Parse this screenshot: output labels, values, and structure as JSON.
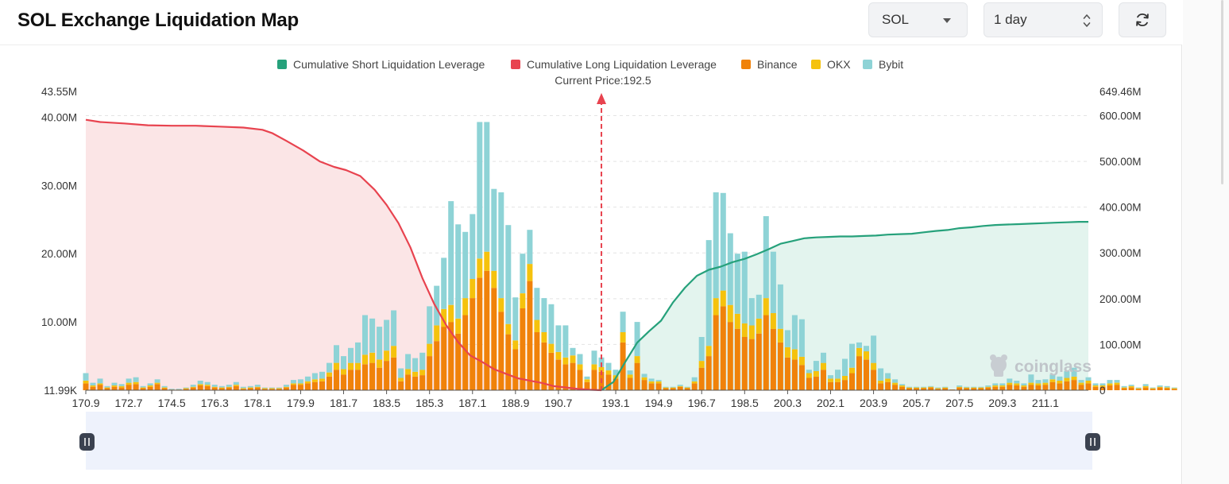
{
  "page": {
    "title": "SOL Exchange Liquidation Map"
  },
  "controls": {
    "coin": "SOL",
    "range": "1 day"
  },
  "watermark": "coinglass",
  "chart_data": {
    "type": "bar",
    "legend": [
      {
        "name": "Cumulative Short Liquidation Leverage",
        "color": "#26a17b"
      },
      {
        "name": "Cumulative Long Liquidation Leverage",
        "color": "#e8434f"
      },
      {
        "name": "Binance",
        "color": "#f0820a"
      },
      {
        "name": "OKX",
        "color": "#f5c20d"
      },
      {
        "name": "Bybit",
        "color": "#8ed3d6"
      }
    ],
    "current_price_label": "Current Price:192.5",
    "current_price": 192.5,
    "x_range": [
      170.9,
      212.9
    ],
    "x_ticks": [
      170.9,
      172.7,
      174.5,
      176.3,
      178.1,
      179.9,
      181.7,
      183.5,
      185.3,
      187.1,
      188.9,
      190.7,
      193.1,
      194.9,
      196.7,
      198.5,
      200.3,
      202.1,
      203.9,
      205.7,
      207.5,
      209.3,
      211.1
    ],
    "x_tick_labels": [
      "170.9",
      "172.7",
      "174.5",
      "176.3",
      "178.1",
      "179.9",
      "181.7",
      "183.5",
      "185.3",
      "187.1",
      "188.9",
      "190.7",
      "193.1",
      "194.9",
      "196.7",
      "198.5",
      "200.3",
      "202.1",
      "203.9",
      "205.7",
      "207.5",
      "209.3",
      "211.1"
    ],
    "y_left": {
      "min": 0,
      "max": 43.55,
      "unit": "M",
      "ticks": [
        0,
        10,
        20,
        30,
        40
      ],
      "tick_labels": [
        "11.99K",
        "10.00M",
        "20.00M",
        "30.00M",
        "40.00M"
      ],
      "top_label": "43.55M"
    },
    "y_right": {
      "min": 0,
      "max": 649.46,
      "unit": "M",
      "ticks": [
        0,
        100,
        200,
        300,
        400,
        500,
        600
      ],
      "tick_labels": [
        "0",
        "100.00M",
        "200.00M",
        "300.00M",
        "400.00M",
        "500.00M",
        "600.00M"
      ],
      "top_label": "649.46M"
    },
    "bars_start": 170.9,
    "bars_step": 0.3,
    "series": [
      {
        "name": "Binance",
        "color": "#f0820a",
        "values": [
          1.0,
          0.5,
          0.8,
          0.3,
          0.5,
          0.4,
          0.8,
          0.9,
          0.3,
          0.5,
          0.9,
          0.3,
          0.1,
          0.1,
          0.2,
          0.4,
          0.7,
          0.6,
          0.4,
          0.3,
          0.4,
          0.6,
          0.2,
          0.3,
          0.4,
          0.2,
          0.2,
          0.2,
          0.4,
          0.8,
          0.8,
          1.0,
          1.2,
          1.3,
          2.0,
          3.0,
          2.3,
          3.0,
          3.0,
          3.8,
          4.0,
          3.3,
          4.3,
          4.8,
          1.3,
          2.3,
          2.0,
          2.2,
          5.0,
          7.2,
          9.3,
          10.0,
          8.3,
          11.0,
          13.5,
          16.5,
          17.5,
          15.0,
          11.5,
          8.2,
          6.0,
          12.0,
          16.0,
          8.5,
          7.0,
          5.5,
          4.5,
          3.8,
          4.0,
          3.0,
          1.2,
          3.0,
          2.7,
          2.3,
          1.7,
          7.0,
          1.8,
          4.0,
          1.5,
          1.0,
          1.0,
          0.3,
          0.3,
          0.5,
          0.3,
          1.0,
          3.3,
          5.0,
          11.0,
          12.3,
          10.0,
          9.0,
          7.8,
          7.5,
          8.3,
          11.0,
          9.0,
          7.0,
          4.8,
          4.5,
          3.7,
          1.8,
          2.0,
          3.0,
          1.2,
          1.2,
          1.5,
          2.5,
          5.0,
          4.5,
          3.0,
          1.0,
          1.2,
          0.8,
          0.5,
          0.3,
          0.3,
          0.3,
          0.4,
          0.2,
          0.3,
          0.1,
          0.4,
          0.3,
          0.3,
          0.3,
          0.4,
          0.5,
          0.5,
          0.8,
          0.7,
          0.5,
          0.8,
          0.7,
          0.8,
          1.2,
          1.0,
          1.3,
          1.5,
          0.8,
          1.0,
          0.5,
          0.5,
          0.7,
          0.8,
          0.3,
          0.4,
          0.2,
          0.4,
          0.2,
          0.4,
          0.3,
          0.2
        ]
      },
      {
        "name": "OKX",
        "color": "#f5c20d",
        "values": [
          0.4,
          0.2,
          0.2,
          0.1,
          0.2,
          0.2,
          0.3,
          0.3,
          0.1,
          0.2,
          0.2,
          0.1,
          0.0,
          0.0,
          0.1,
          0.1,
          0.2,
          0.2,
          0.1,
          0.1,
          0.1,
          0.2,
          0.1,
          0.1,
          0.1,
          0.1,
          0.1,
          0.1,
          0.1,
          0.2,
          0.2,
          0.3,
          0.4,
          0.4,
          0.6,
          1.0,
          0.8,
          1.0,
          1.0,
          1.4,
          1.5,
          1.2,
          1.5,
          1.7,
          0.5,
          0.8,
          0.7,
          0.8,
          1.8,
          2.3,
          2.6,
          2.5,
          2.2,
          2.5,
          2.8,
          2.8,
          2.8,
          2.5,
          2.0,
          1.5,
          1.3,
          2.2,
          2.5,
          1.8,
          1.5,
          1.3,
          1.1,
          1.0,
          1.1,
          0.8,
          0.4,
          0.8,
          0.7,
          0.6,
          0.5,
          1.5,
          0.5,
          1.0,
          0.4,
          0.3,
          0.3,
          0.1,
          0.1,
          0.1,
          0.1,
          0.3,
          1.0,
          1.5,
          2.5,
          2.3,
          2.5,
          2.2,
          2.0,
          2.0,
          2.2,
          2.5,
          2.3,
          2.0,
          1.5,
          1.5,
          1.2,
          0.7,
          0.8,
          1.0,
          0.5,
          0.5,
          0.6,
          0.8,
          1.2,
          1.2,
          1.0,
          0.4,
          0.5,
          0.3,
          0.2,
          0.1,
          0.1,
          0.1,
          0.1,
          0.1,
          0.1,
          0.0,
          0.1,
          0.1,
          0.1,
          0.1,
          0.1,
          0.2,
          0.2,
          0.3,
          0.3,
          0.2,
          0.3,
          0.3,
          0.3,
          0.4,
          0.4,
          0.5,
          0.5,
          0.3,
          0.4,
          0.2,
          0.2,
          0.3,
          0.3,
          0.1,
          0.2,
          0.1,
          0.2,
          0.1,
          0.1,
          0.1,
          0.1
        ]
      },
      {
        "name": "Bybit",
        "color": "#8ed3d6",
        "values": [
          1.1,
          0.4,
          0.7,
          0.2,
          0.4,
          0.3,
          0.6,
          0.7,
          0.2,
          0.3,
          0.5,
          0.2,
          0.1,
          0.1,
          0.1,
          0.3,
          0.5,
          0.4,
          0.3,
          0.2,
          0.3,
          0.4,
          0.2,
          0.2,
          0.3,
          0.1,
          0.1,
          0.1,
          0.3,
          0.5,
          0.6,
          0.7,
          0.9,
          1.0,
          1.4,
          2.6,
          1.9,
          2.2,
          3.0,
          5.8,
          5.0,
          4.8,
          4.5,
          5.2,
          1.4,
          2.2,
          2.0,
          2.5,
          5.5,
          5.8,
          7.5,
          15.2,
          13.8,
          9.7,
          9.5,
          20.0,
          19.0,
          12.0,
          15.5,
          14.5,
          6.3,
          5.8,
          5.0,
          4.7,
          5.0,
          5.8,
          3.9,
          4.7,
          1.1,
          1.5,
          0.4,
          2.0,
          1.4,
          1.1,
          0.8,
          3.0,
          0.6,
          5.0,
          0.5,
          0.4,
          0.2,
          0.1,
          0.1,
          0.2,
          0.1,
          0.6,
          3.5,
          15.5,
          15.5,
          14.3,
          10.5,
          8.8,
          10.5,
          4.0,
          3.5,
          12.0,
          9.0,
          6.5,
          2.5,
          5.0,
          5.5,
          0.5,
          1.5,
          1.5,
          0.5,
          1.3,
          2.5,
          3.5,
          0.8,
          0.8,
          4.0,
          1.8,
          0.8,
          0.5,
          0.2,
          0.1,
          0.1,
          0.1,
          0.1,
          0.1,
          0.1,
          0.0,
          0.2,
          0.1,
          0.1,
          0.1,
          0.2,
          0.3,
          0.3,
          0.6,
          0.4,
          0.3,
          1.2,
          0.5,
          0.5,
          0.7,
          0.6,
          1.0,
          1.3,
          0.4,
          0.5,
          0.3,
          0.3,
          0.5,
          0.4,
          0.2,
          0.2,
          0.1,
          0.3,
          0.1,
          0.2,
          0.2,
          0.1
        ]
      },
      {
        "name": "Cumulative Long Liquidation Leverage",
        "color": "#e8434f",
        "x": [
          170.9,
          171.5,
          172.5,
          173.5,
          174.5,
          175.5,
          176.5,
          177.5,
          178.3,
          178.7,
          179.3,
          180.0,
          180.7,
          181.3,
          181.8,
          182.4,
          183.0,
          183.5,
          184.0,
          184.5,
          185.0,
          185.5,
          186.0,
          186.5,
          187.0,
          187.5,
          188.0,
          188.5,
          189.0,
          189.5,
          190.0,
          190.5,
          191.0,
          191.5,
          192.0,
          192.5
        ],
        "values": [
          591,
          586,
          583,
          579,
          578,
          578,
          576,
          574,
          569,
          562,
          545,
          524,
          500,
          488,
          481,
          468,
          438,
          405,
          365,
          312,
          245,
          188,
          142,
          105,
          76,
          62,
          46,
          36,
          26,
          21,
          16,
          9,
          6,
          3,
          1,
          0
        ]
      },
      {
        "name": "Cumulative Short Liquidation Leverage",
        "color": "#26a17b",
        "x": [
          192.5,
          193.0,
          193.5,
          194.0,
          194.5,
          195.0,
          195.5,
          196.0,
          196.5,
          197.0,
          197.5,
          198.0,
          198.5,
          199.0,
          199.5,
          200.0,
          200.5,
          201.0,
          201.5,
          202.0,
          202.5,
          203.0,
          203.5,
          204.0,
          204.5,
          205.0,
          205.5,
          206.0,
          206.5,
          207.0,
          207.5,
          208.0,
          208.5,
          209.0,
          209.5,
          210.0,
          210.5,
          211.0,
          211.5,
          212.0,
          212.5,
          212.9
        ],
        "values": [
          0,
          18,
          62,
          104,
          129,
          152,
          192,
          224,
          250,
          263,
          270,
          280,
          287,
          297,
          308,
          320,
          326,
          332,
          334,
          335,
          336,
          336,
          337,
          338,
          340,
          341,
          342,
          345,
          348,
          350,
          354,
          356,
          359,
          361,
          362,
          363,
          364,
          365,
          366,
          367,
          368,
          368
        ]
      }
    ]
  }
}
